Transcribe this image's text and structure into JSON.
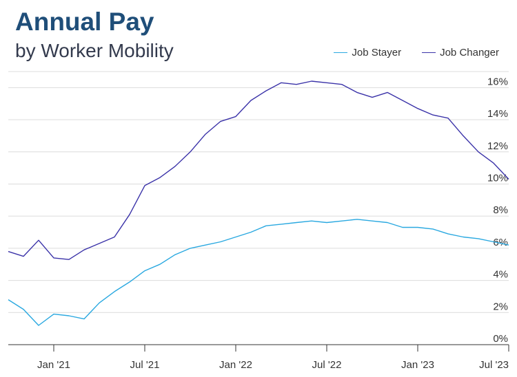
{
  "title": "Annual Pay",
  "subtitle": "by Worker Mobility",
  "colors": {
    "job_stayer": "#29a8e0",
    "job_changer": "#3a32a8",
    "grid": "#dcdcdc",
    "axis": "#333333"
  },
  "chart_data": {
    "type": "line",
    "title": "Annual Pay",
    "subtitle": "by Worker Mobility",
    "legend_position": "top-right",
    "grid": true,
    "ylim": [
      0,
      17
    ],
    "yticks": [
      0,
      2,
      4,
      6,
      8,
      10,
      12,
      14,
      16
    ],
    "ytick_labels": [
      "0%",
      "2%",
      "4%",
      "6%",
      "8%",
      "10%",
      "12%",
      "14%",
      "16%"
    ],
    "xlim": [
      "2020-10",
      "2023-07"
    ],
    "xticks": [
      "2021-01",
      "2021-07",
      "2022-01",
      "2022-07",
      "2023-01",
      "2023-07"
    ],
    "xtick_labels": [
      "Jan '21",
      "Jul '21",
      "Jan '22",
      "Jul '22",
      "Jan '23",
      "Jul '23"
    ],
    "x": [
      "2020-10",
      "2020-11",
      "2020-12",
      "2021-01",
      "2021-02",
      "2021-03",
      "2021-04",
      "2021-05",
      "2021-06",
      "2021-07",
      "2021-08",
      "2021-09",
      "2021-10",
      "2021-11",
      "2021-12",
      "2022-01",
      "2022-02",
      "2022-03",
      "2022-04",
      "2022-05",
      "2022-06",
      "2022-07",
      "2022-08",
      "2022-09",
      "2022-10",
      "2022-11",
      "2022-12",
      "2023-01",
      "2023-02",
      "2023-03",
      "2023-04",
      "2023-05",
      "2023-06",
      "2023-07"
    ],
    "series": [
      {
        "name": "Job Stayer",
        "color": "#29a8e0",
        "values": [
          2.8,
          2.2,
          1.2,
          1.9,
          1.8,
          1.6,
          2.6,
          3.3,
          3.9,
          4.6,
          5.0,
          5.6,
          6.0,
          6.2,
          6.4,
          6.7,
          7.0,
          7.4,
          7.5,
          7.6,
          7.7,
          7.6,
          7.7,
          7.8,
          7.7,
          7.6,
          7.3,
          7.3,
          7.2,
          6.9,
          6.7,
          6.6,
          6.4,
          6.2
        ]
      },
      {
        "name": "Job Changer",
        "color": "#3a32a8",
        "values": [
          5.8,
          5.5,
          6.5,
          5.4,
          5.3,
          5.9,
          6.3,
          6.7,
          8.1,
          9.9,
          10.4,
          11.1,
          12.0,
          13.1,
          13.9,
          14.2,
          15.2,
          15.8,
          16.3,
          16.2,
          16.4,
          16.3,
          16.2,
          15.7,
          15.4,
          15.7,
          15.2,
          14.7,
          14.3,
          14.1,
          13.0,
          12.0,
          11.3,
          10.3
        ]
      }
    ]
  }
}
